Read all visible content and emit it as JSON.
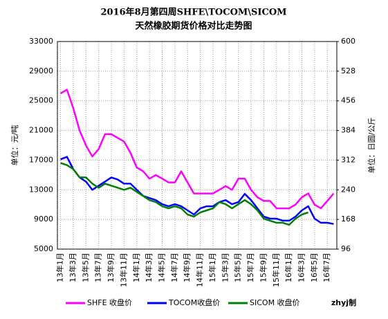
{
  "chart_data": {
    "type": "line",
    "title": "2016年8月第四周SHFE\\TOCOM\\SICOM",
    "subtitle": "天然橡胶期货价格对比走势图",
    "y_label": "单位：元/吨",
    "y2_label": "单位：日圆/公斤",
    "annotation": "zhyj制",
    "categories": [
      "13年1月",
      null,
      "13年3月",
      null,
      "13年5月",
      null,
      "13年7月",
      null,
      "13年9月",
      null,
      "13年11月",
      null,
      "14年1月",
      null,
      "14年3月",
      null,
      "14年5月",
      null,
      "14年7月",
      null,
      "14年9月",
      null,
      "14年11月",
      null,
      "15年1月",
      null,
      "15年3月",
      null,
      "15年5月",
      null,
      "15年7月",
      null,
      "15年9月",
      null,
      "15年11月",
      null,
      "16年1月",
      null,
      "16年3月",
      null,
      "16年5月",
      null,
      "16年7月",
      null
    ],
    "series": [
      {
        "name": "SHFE 收盘价",
        "color": "#ff00ff",
        "axis": "y",
        "values": [
          26000,
          26500,
          24000,
          21000,
          19000,
          17500,
          18500,
          20500,
          20500,
          20000,
          19500,
          18000,
          16000,
          15500,
          14500,
          15000,
          14500,
          14000,
          14000,
          15500,
          14000,
          12500,
          12500,
          12500,
          12500,
          13000,
          13500,
          13000,
          14500,
          14500,
          13000,
          12000,
          11500,
          11500,
          10500,
          10500,
          10500,
          11000,
          12000,
          12500,
          11000,
          10500,
          11500,
          12500
        ]
      },
      {
        "name": "TOCOM收盘价",
        "color": "#0000ff",
        "axis": "y2",
        "values": [
          314,
          320,
          290,
          270,
          260,
          240,
          250,
          260,
          270,
          265,
          255,
          255,
          240,
          225,
          220,
          215,
          205,
          200,
          205,
          200,
          190,
          180,
          195,
          200,
          200,
          210,
          215,
          205,
          210,
          230,
          215,
          195,
          175,
          170,
          170,
          165,
          165,
          175,
          190,
          200,
          170,
          160,
          160,
          157
        ]
      },
      {
        "name": "SICOM 收盘价",
        "color": "#008000",
        "axis": "y2",
        "values": [
          305,
          300,
          290,
          270,
          270,
          255,
          245,
          255,
          250,
          245,
          240,
          245,
          235,
          225,
          215,
          210,
          200,
          195,
          200,
          195,
          180,
          175,
          185,
          190,
          195,
          210,
          205,
          195,
          205,
          215,
          205,
          190,
          170,
          165,
          160,
          160,
          155,
          170,
          180,
          185,
          null,
          null,
          null,
          null
        ]
      }
    ],
    "ylim": [
      5000,
      33000
    ],
    "yticks": [
      5000,
      9000,
      13000,
      17000,
      21000,
      25000,
      29000,
      33000
    ],
    "y2lim": [
      96,
      600
    ],
    "y2ticks": [
      96,
      168,
      240,
      312,
      384,
      456,
      528,
      600
    ],
    "grid": true
  }
}
